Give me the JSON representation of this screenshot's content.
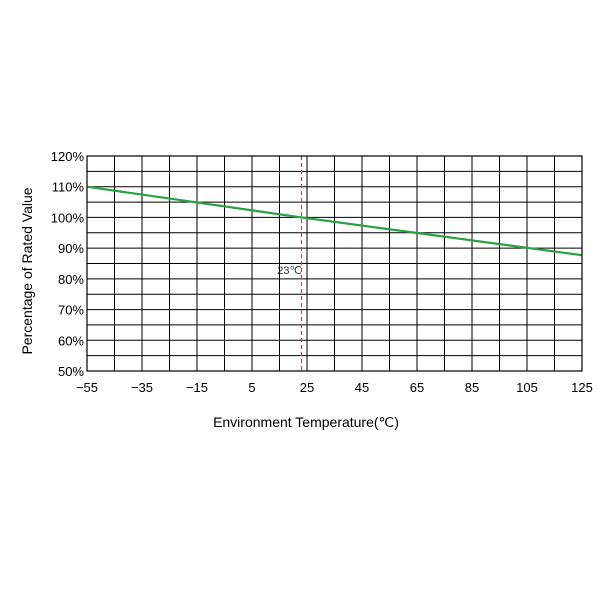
{
  "chart_data": {
    "type": "line",
    "xlabel": "Environment Temperature(℃)",
    "ylabel": "Percentage of Rated Value",
    "xlim": [
      -55,
      125
    ],
    "ylim": [
      50,
      120
    ],
    "x_ticks": [
      "−55",
      "−35",
      "−15",
      "5",
      "25",
      "45",
      "65",
      "85",
      "105",
      "125"
    ],
    "y_ticks": [
      "50%",
      "60%",
      "70%",
      "80%",
      "90%",
      "100%",
      "110%",
      "120%"
    ],
    "grid": true,
    "series": [
      {
        "x": [
          -55,
          23,
          125
        ],
        "y": [
          110,
          100,
          87.7
        ],
        "color": "#2aa040"
      }
    ],
    "reference_line": {
      "x": 23,
      "label": "23℃",
      "color": "#e23b3b"
    }
  }
}
